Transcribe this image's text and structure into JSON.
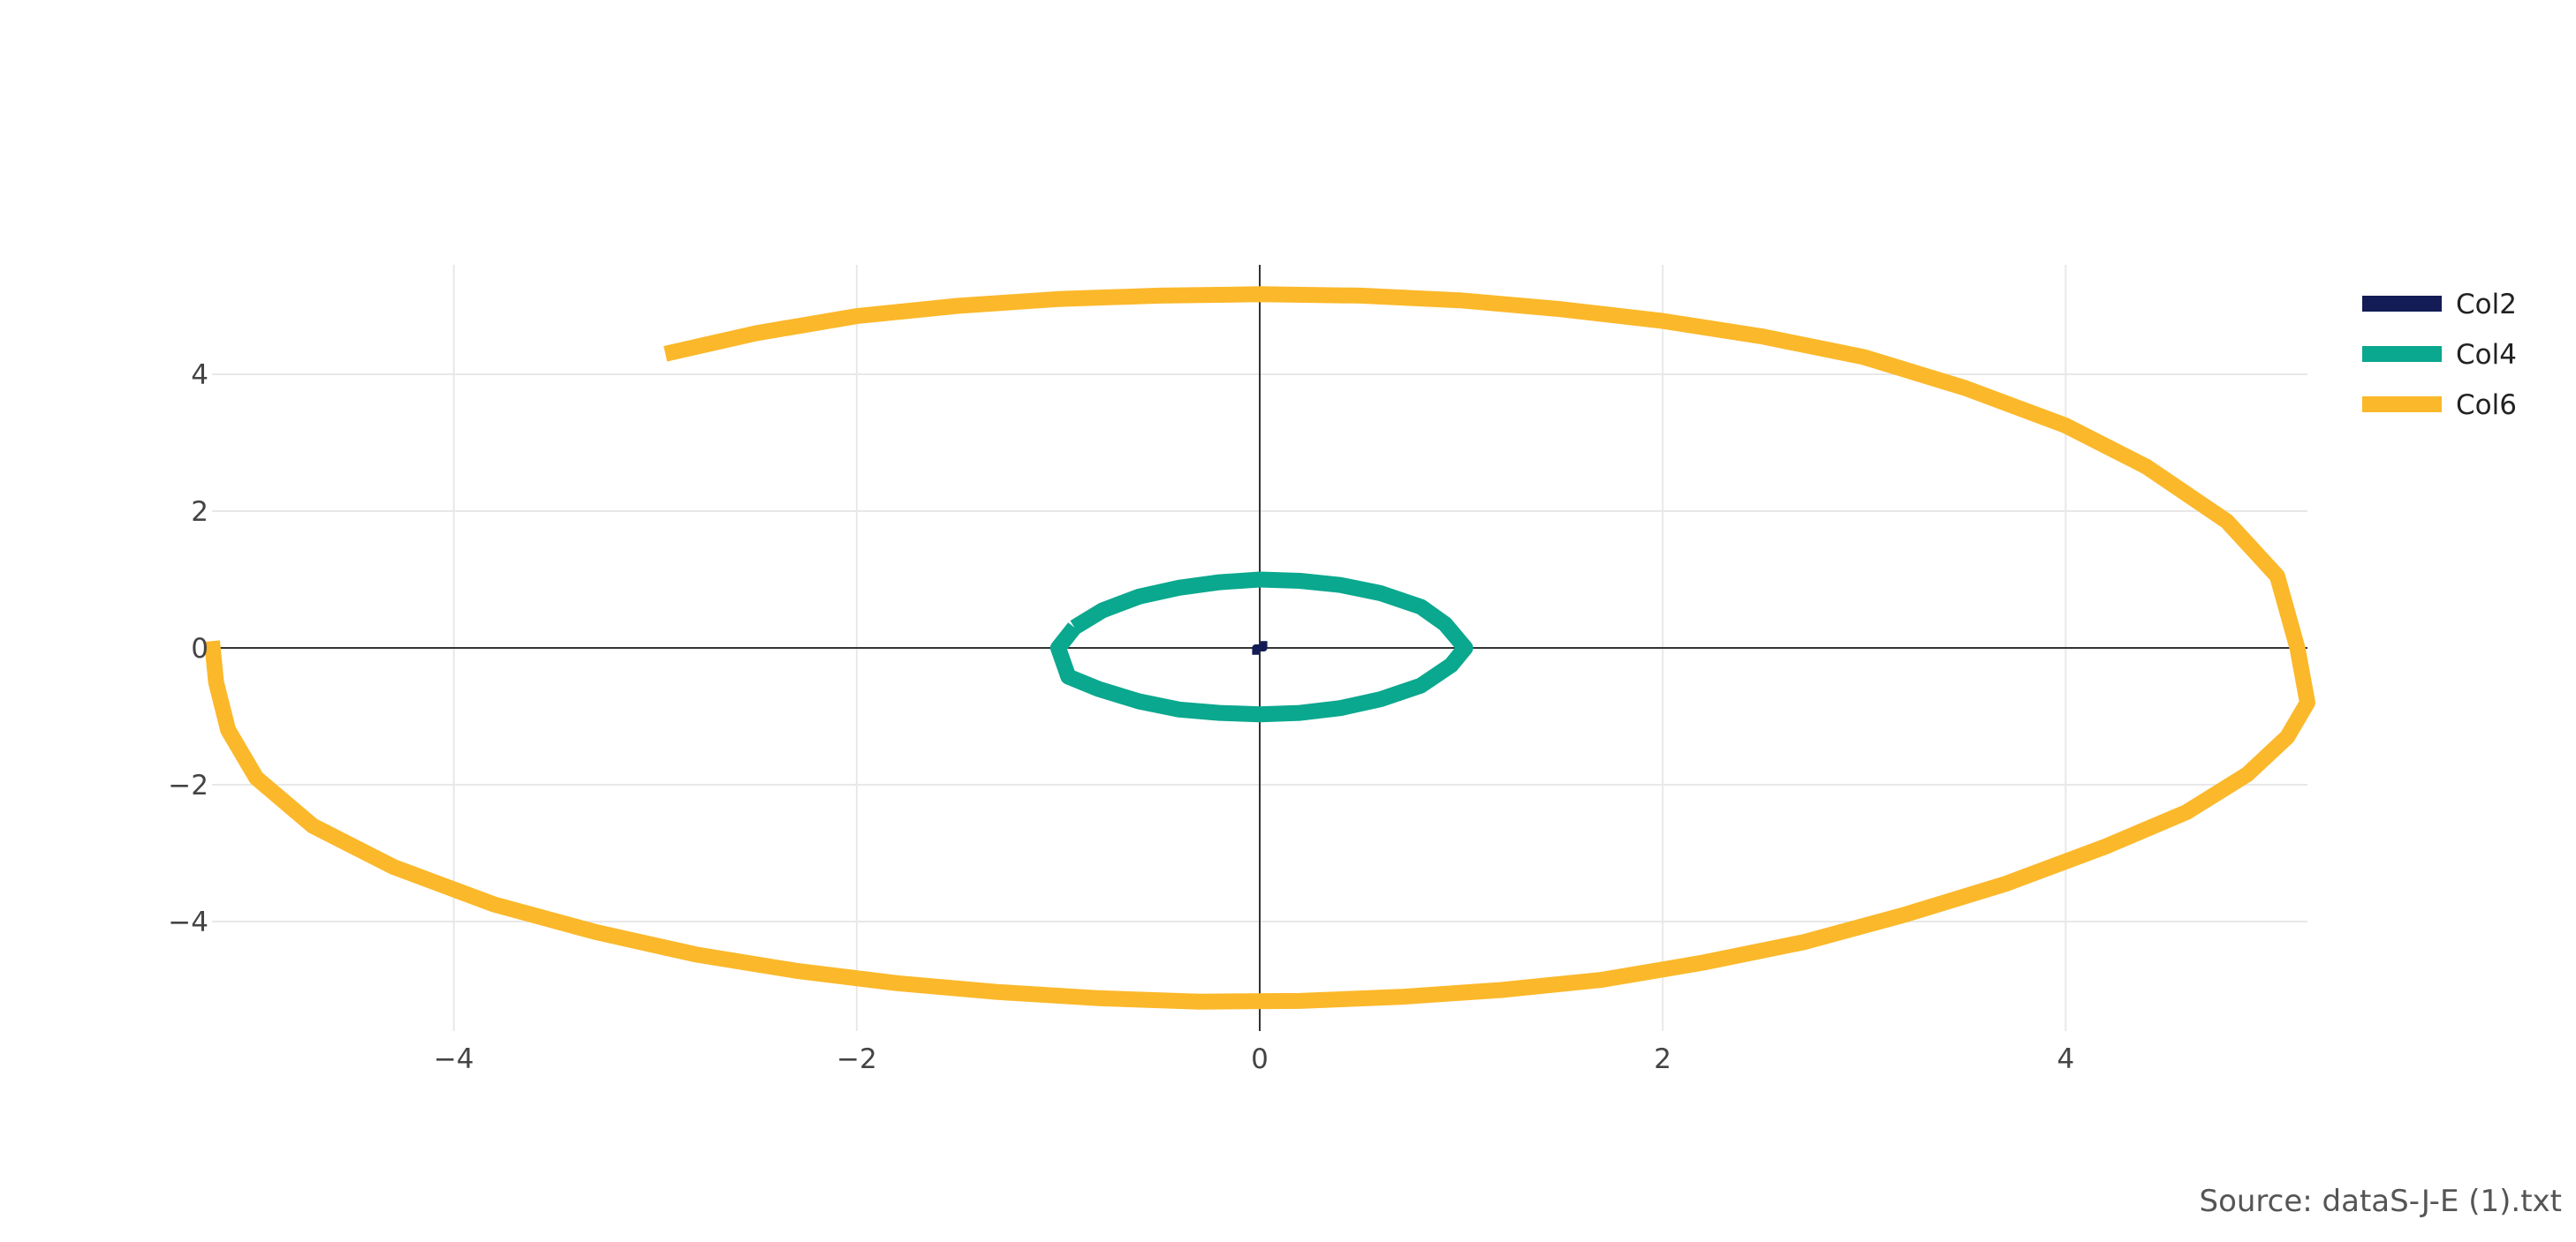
{
  "chart_data": {
    "type": "line",
    "title": "",
    "xlabel": "",
    "ylabel": "",
    "xlim": [
      -5.2,
      5.2
    ],
    "ylim": [
      -5.6,
      5.6
    ],
    "xticks": [
      -4,
      -2,
      0,
      2,
      4
    ],
    "yticks": [
      -4,
      -2,
      0,
      2,
      4
    ],
    "xtick_labels": [
      "−4",
      "−2",
      "0",
      "2",
      "4"
    ],
    "ytick_labels": [
      "−4",
      "−2",
      "0",
      "2",
      "4"
    ],
    "grid": true,
    "legend_position": "top-right",
    "series": [
      {
        "name": "Col2",
        "color": "#131c55",
        "x": [
          -0.02,
          -0.02,
          0.02,
          0.02
        ],
        "y": [
          -0.1,
          0.0,
          0.0,
          0.1
        ]
      },
      {
        "name": "Col4",
        "color": "#0aa88e",
        "x": [
          -0.92,
          -0.78,
          -0.6,
          -0.4,
          -0.2,
          0.0,
          0.2,
          0.4,
          0.6,
          0.8,
          0.92,
          1.02,
          0.95,
          0.8,
          0.6,
          0.4,
          0.2,
          0.0,
          -0.2,
          -0.4,
          -0.6,
          -0.8,
          -0.95,
          -1.0,
          -0.92
        ],
        "y": [
          0.3,
          0.55,
          0.75,
          0.88,
          0.96,
          1.0,
          0.98,
          0.92,
          0.8,
          0.6,
          0.35,
          0.0,
          -0.25,
          -0.55,
          -0.75,
          -0.88,
          -0.95,
          -0.97,
          -0.95,
          -0.9,
          -0.78,
          -0.6,
          -0.42,
          0.0,
          0.3
        ]
      },
      {
        "name": "Col6",
        "color": "#fbb82a",
        "x": [
          -2.95,
          -2.5,
          -2.0,
          -1.5,
          -1.0,
          -0.5,
          0.0,
          0.5,
          1.0,
          1.5,
          2.0,
          2.5,
          3.0,
          3.5,
          4.0,
          4.4,
          4.8,
          5.05,
          5.15,
          5.2,
          5.1,
          4.9,
          4.6,
          4.2,
          3.7,
          3.2,
          2.7,
          2.2,
          1.7,
          1.2,
          0.7,
          0.2,
          -0.3,
          -0.8,
          -1.3,
          -1.8,
          -2.3,
          -2.8,
          -3.3,
          -3.8,
          -4.3,
          -4.7,
          -4.98,
          -5.12,
          -5.18,
          -5.2
        ],
        "y": [
          4.3,
          4.6,
          4.85,
          5.0,
          5.1,
          5.15,
          5.17,
          5.15,
          5.08,
          4.95,
          4.78,
          4.55,
          4.25,
          3.8,
          3.25,
          2.65,
          1.85,
          1.05,
          0.0,
          -0.8,
          -1.3,
          -1.85,
          -2.4,
          -2.9,
          -3.45,
          -3.9,
          -4.3,
          -4.6,
          -4.85,
          -5.0,
          -5.1,
          -5.16,
          -5.17,
          -5.12,
          -5.03,
          -4.9,
          -4.72,
          -4.48,
          -4.15,
          -3.75,
          -3.2,
          -2.6,
          -1.9,
          -1.2,
          -0.5,
          0.1
        ]
      }
    ],
    "annotations": [
      "Source: dataS-J-E (1).txt"
    ]
  }
}
